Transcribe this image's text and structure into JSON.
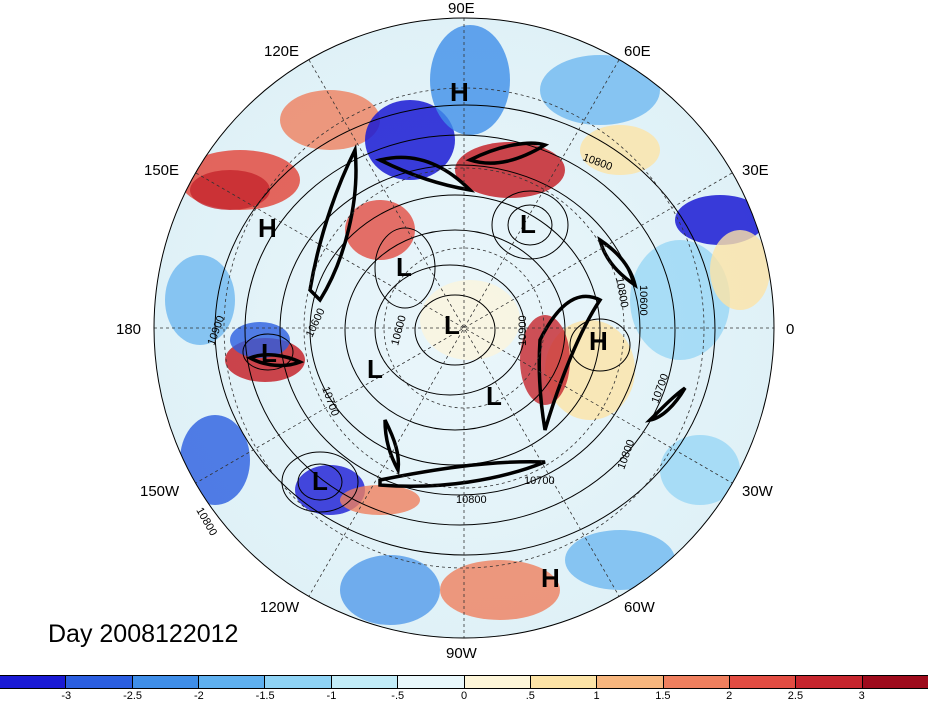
{
  "title": "Day 2008122012",
  "longitude_labels": [
    "90E",
    "60E",
    "30E",
    "0",
    "30W",
    "60W",
    "90W",
    "120W",
    "150W",
    "180",
    "150E",
    "120E"
  ],
  "pressure_centers": [
    {
      "name": "H",
      "lon": "90E-upper"
    },
    {
      "name": "H",
      "lon": "150E"
    },
    {
      "name": "L",
      "lon": "60E"
    },
    {
      "name": "L",
      "lon": "135E"
    },
    {
      "name": "L",
      "lon": "pole"
    },
    {
      "name": "L",
      "lon": "180"
    },
    {
      "name": "L",
      "lon": "150W"
    },
    {
      "name": "L",
      "lon": "120W"
    },
    {
      "name": "L",
      "lon": "150W-outer"
    },
    {
      "name": "H",
      "lon": "0"
    },
    {
      "name": "H",
      "lon": "60W"
    }
  ],
  "contour_labels": [
    "10800",
    "10600",
    "10900",
    "10600",
    "10700",
    "10900",
    "10600",
    "10800",
    "10700",
    "10800",
    "10700",
    "10800",
    "10800"
  ],
  "colorbar": {
    "labels": [
      "-3",
      "-2.5",
      "-2",
      "-1.5",
      "-1",
      "-.5",
      "0",
      ".5",
      "1",
      "1.5",
      "2",
      "2.5",
      "3"
    ],
    "colors": [
      "#1a1ad4",
      "#2b5ee0",
      "#3f8ee8",
      "#5fb0ef",
      "#8fd3f5",
      "#c2ecf8",
      "#e8f7fb",
      "#fdf5d8",
      "#fce3a6",
      "#f7b67e",
      "#ef7f5e",
      "#e24c42",
      "#c6252d",
      "#9e0b1c"
    ]
  }
}
